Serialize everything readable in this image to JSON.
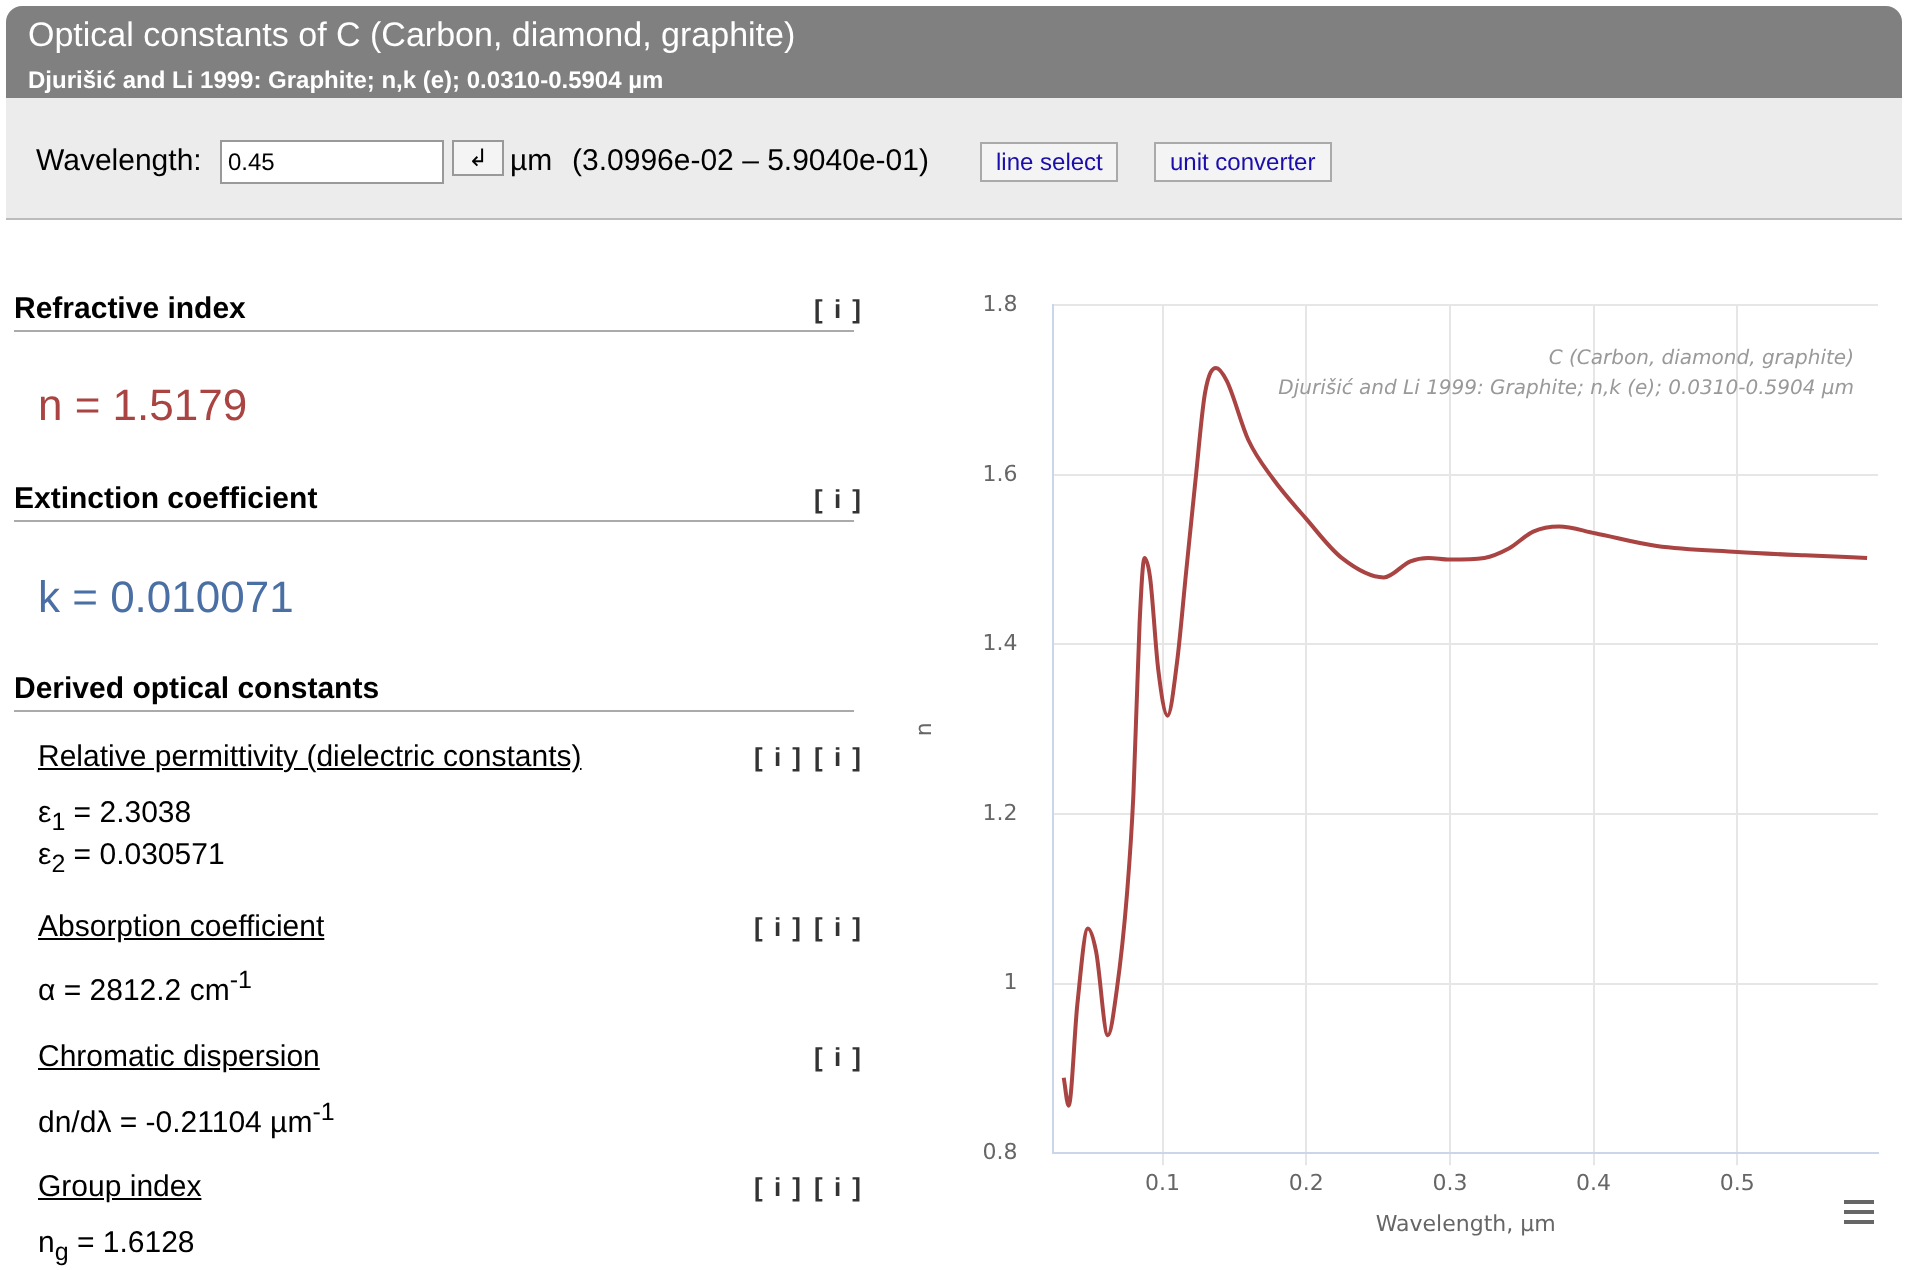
{
  "chart_data": [
    {
      "type": "other",
      "title": "Optical constants of C (Carbon, diamond, graphite)",
      "subtitle": "Djurišić and Li 1999: Graphite; n,k (e); 0.0310-0.5904 µm",
      "annotations": [
        "Wavelength:",
        "0.45",
        "↲",
        "µm",
        "(3.0996e-02 – 5.9040e-01)",
        "line select",
        "unit converter",
        "Refractive index",
        "[ i ]",
        "n = 1.5179",
        "Extinction coefficient",
        "[ i ]",
        "k = 0.010071",
        "Derived optical constants",
        "Relative permittivity (dielectric constants)",
        "[ i ]",
        "[ i ]",
        "ε$_{1}$ = 2.3038",
        "ε$_{2}$ = 0.030571",
        "Absorption coefficient",
        "[ i ]",
        "[ i ]",
        "α = 2812.2 cm$^{-1}$",
        "Chromatic dispersion",
        "[ i ]",
        "dn/dλ = -0.21104 µm$^{-1}$",
        "Group index",
        "[ i ]",
        "[ i ]",
        "n$_{g}$ = 1.6128"
      ]
    },
    {
      "type": "line",
      "xlabel": "Wavelength, µm",
      "ylabel": "n",
      "color": "#a94442",
      "x": [
        0.0312,
        0.0346,
        0.0407,
        0.048,
        0.0537,
        0.0619,
        0.068,
        0.0753,
        0.0797,
        0.084,
        0.0874,
        0.0913,
        0.097,
        0.1035,
        0.11,
        0.1165,
        0.123,
        0.1295,
        0.1372,
        0.1446,
        0.1597,
        0.177,
        0.2,
        0.2247,
        0.254,
        0.2725,
        0.285,
        0.3,
        0.324,
        0.341,
        0.358,
        0.376,
        0.401,
        0.444,
        0.5,
        0.547,
        0.5904
      ],
      "values": [
        0.889,
        0.856,
        0.976,
        1.065,
        1.038,
        0.939,
        0.991,
        1.107,
        1.223,
        1.425,
        1.502,
        1.479,
        1.37,
        1.316,
        1.378,
        1.487,
        1.595,
        1.696,
        1.726,
        1.711,
        1.641,
        1.595,
        1.548,
        1.502,
        1.479,
        1.498,
        1.502,
        1.5,
        1.502,
        1.513,
        1.533,
        1.539,
        1.531,
        1.516,
        1.509,
        1.505,
        1.502
      ],
      "xlim": [
        0.024,
        0.598
      ],
      "xticks": [
        0.1,
        0.2,
        0.3,
        0.4,
        0.5
      ],
      "ylim": [
        0.8,
        1.8
      ],
      "yticks": [
        0.8,
        1,
        1.2,
        1.4,
        1.6,
        1.8
      ],
      "grid": true,
      "annotations": [
        "C (Carbon, diamond, graphite)",
        "Djurišić and Li 1999: Graphite; n,k (e); 0.0310-0.5904 µm"
      ]
    }
  ]
}
